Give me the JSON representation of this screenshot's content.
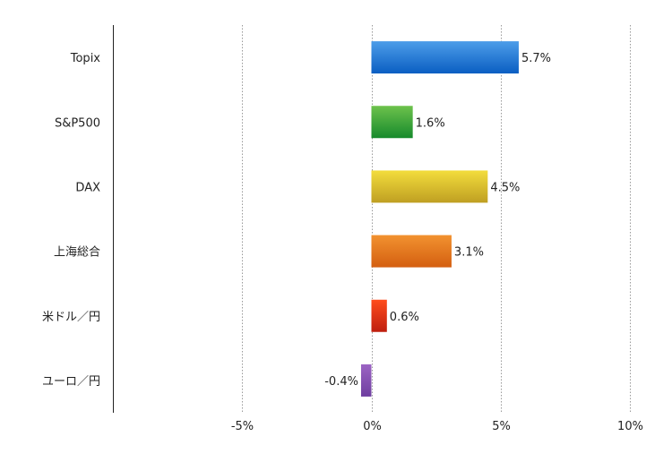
{
  "chart_data": {
    "type": "bar",
    "orientation": "horizontal",
    "categories": [
      "Topix",
      "S&P500",
      "DAX",
      "上海総合",
      "米ドル／円",
      "ユーロ／円"
    ],
    "values": [
      5.7,
      1.6,
      4.5,
      3.1,
      0.6,
      -0.4
    ],
    "data_labels": [
      "5.7%",
      "1.6%",
      "4.5%",
      "3.1%",
      "0.6%",
      "-0.4%"
    ],
    "colors": [
      [
        "#4d9de9",
        "#0a5ec2"
      ],
      [
        "#6dc24c",
        "#168a2c"
      ],
      [
        "#f3dd3c",
        "#bf9f22"
      ],
      [
        "#f29230",
        "#d45f10"
      ],
      [
        "#ff4c1c",
        "#be1e0e"
      ],
      [
        "#9c64c4",
        "#6e3ea0"
      ]
    ],
    "xlim": [
      -10,
      10
    ],
    "xticks": [
      -5,
      0,
      5,
      10
    ],
    "xtick_labels": [
      "-5%",
      "0%",
      "5%",
      "10%"
    ],
    "grid": "vertical dotted",
    "title": "",
    "xlabel": "",
    "ylabel": ""
  }
}
